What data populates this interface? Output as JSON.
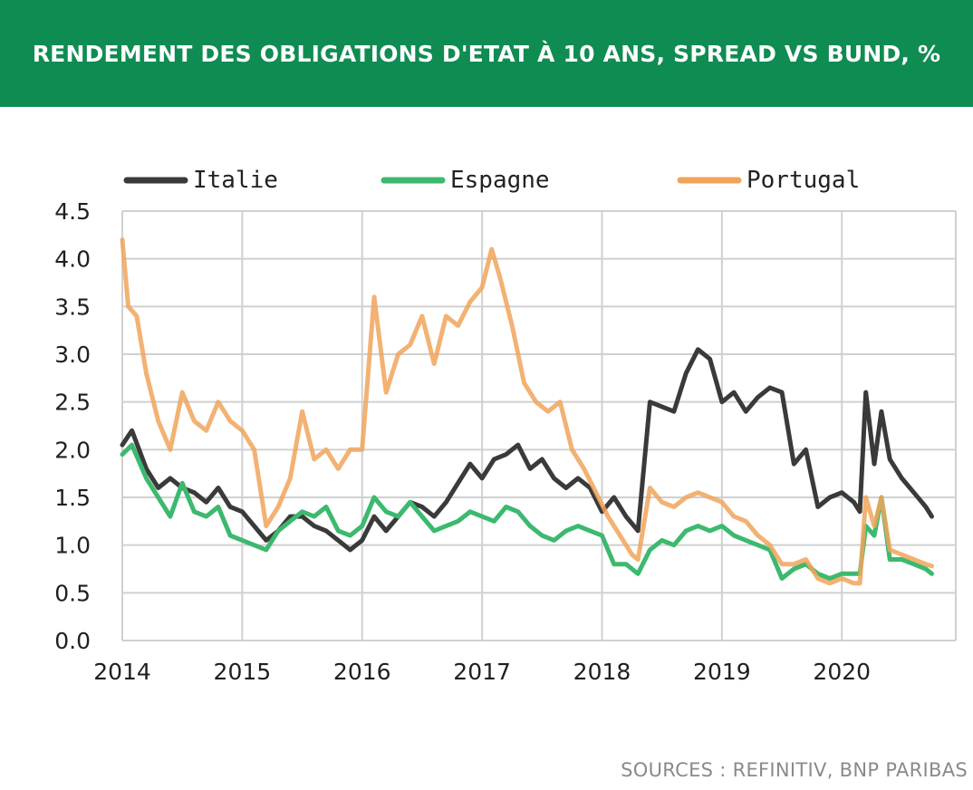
{
  "title": "RENDEMENT DES OBLIGATIONS D'ETAT À 10 ANS, SPREAD VS BUND, %",
  "source": "SOURCES : REFINITIV, BNP PARIBAS",
  "colors": {
    "banner": "#0f8c52",
    "italie": "#3a3a3a",
    "espagne": "#3cb96e",
    "portugal": "#f0a45a",
    "grid": "#d0d0d0"
  },
  "chart_data": {
    "type": "line",
    "title": "RENDEMENT DES OBLIGATIONS D'ETAT À 10 ANS, SPREAD VS BUND, %",
    "xlabel": "",
    "ylabel": "",
    "xlim": [
      2014,
      2020.95
    ],
    "ylim": [
      0,
      4.5
    ],
    "y_ticks": [
      "0.0",
      "0.5",
      "1.0",
      "1.5",
      "2.0",
      "2.5",
      "3.0",
      "3.5",
      "4.0",
      "4.5"
    ],
    "x_ticks": [
      "2014",
      "2015",
      "2016",
      "2017",
      "2018",
      "2019",
      "2020"
    ],
    "grid": true,
    "legend_position": "top",
    "series": [
      {
        "name": "Italie",
        "points": [
          [
            2014.0,
            2.05
          ],
          [
            2014.08,
            2.2
          ],
          [
            2014.2,
            1.8
          ],
          [
            2014.3,
            1.6
          ],
          [
            2014.4,
            1.7
          ],
          [
            2014.5,
            1.6
          ],
          [
            2014.6,
            1.55
          ],
          [
            2014.7,
            1.45
          ],
          [
            2014.8,
            1.6
          ],
          [
            2014.9,
            1.4
          ],
          [
            2015.0,
            1.35
          ],
          [
            2015.1,
            1.2
          ],
          [
            2015.2,
            1.05
          ],
          [
            2015.3,
            1.15
          ],
          [
            2015.4,
            1.3
          ],
          [
            2015.5,
            1.3
          ],
          [
            2015.6,
            1.2
          ],
          [
            2015.7,
            1.15
          ],
          [
            2015.8,
            1.05
          ],
          [
            2015.9,
            0.95
          ],
          [
            2016.0,
            1.05
          ],
          [
            2016.1,
            1.3
          ],
          [
            2016.2,
            1.15
          ],
          [
            2016.3,
            1.3
          ],
          [
            2016.4,
            1.45
          ],
          [
            2016.5,
            1.4
          ],
          [
            2016.6,
            1.3
          ],
          [
            2016.7,
            1.45
          ],
          [
            2016.8,
            1.65
          ],
          [
            2016.9,
            1.85
          ],
          [
            2017.0,
            1.7
          ],
          [
            2017.1,
            1.9
          ],
          [
            2017.2,
            1.95
          ],
          [
            2017.3,
            2.05
          ],
          [
            2017.4,
            1.8
          ],
          [
            2017.5,
            1.9
          ],
          [
            2017.6,
            1.7
          ],
          [
            2017.7,
            1.6
          ],
          [
            2017.8,
            1.7
          ],
          [
            2017.9,
            1.6
          ],
          [
            2018.0,
            1.35
          ],
          [
            2018.1,
            1.5
          ],
          [
            2018.2,
            1.3
          ],
          [
            2018.3,
            1.15
          ],
          [
            2018.4,
            2.5
          ],
          [
            2018.5,
            2.45
          ],
          [
            2018.6,
            2.4
          ],
          [
            2018.7,
            2.8
          ],
          [
            2018.8,
            3.05
          ],
          [
            2018.9,
            2.95
          ],
          [
            2019.0,
            2.5
          ],
          [
            2019.1,
            2.6
          ],
          [
            2019.2,
            2.4
          ],
          [
            2019.3,
            2.55
          ],
          [
            2019.4,
            2.65
          ],
          [
            2019.5,
            2.6
          ],
          [
            2019.6,
            1.85
          ],
          [
            2019.7,
            2.0
          ],
          [
            2019.8,
            1.4
          ],
          [
            2019.9,
            1.5
          ],
          [
            2020.0,
            1.55
          ],
          [
            2020.1,
            1.45
          ],
          [
            2020.15,
            1.35
          ],
          [
            2020.2,
            2.6
          ],
          [
            2020.27,
            1.85
          ],
          [
            2020.33,
            2.4
          ],
          [
            2020.4,
            1.9
          ],
          [
            2020.5,
            1.7
          ],
          [
            2020.6,
            1.55
          ],
          [
            2020.7,
            1.4
          ],
          [
            2020.75,
            1.3
          ]
        ]
      },
      {
        "name": "Espagne",
        "points": [
          [
            2014.0,
            1.95
          ],
          [
            2014.08,
            2.05
          ],
          [
            2014.2,
            1.7
          ],
          [
            2014.3,
            1.5
          ],
          [
            2014.4,
            1.3
          ],
          [
            2014.5,
            1.65
          ],
          [
            2014.6,
            1.35
          ],
          [
            2014.7,
            1.3
          ],
          [
            2014.8,
            1.4
          ],
          [
            2014.9,
            1.1
          ],
          [
            2015.0,
            1.05
          ],
          [
            2015.1,
            1.0
          ],
          [
            2015.2,
            0.95
          ],
          [
            2015.3,
            1.15
          ],
          [
            2015.4,
            1.25
          ],
          [
            2015.5,
            1.35
          ],
          [
            2015.6,
            1.3
          ],
          [
            2015.7,
            1.4
          ],
          [
            2015.8,
            1.15
          ],
          [
            2015.9,
            1.1
          ],
          [
            2016.0,
            1.2
          ],
          [
            2016.1,
            1.5
          ],
          [
            2016.2,
            1.35
          ],
          [
            2016.3,
            1.3
          ],
          [
            2016.4,
            1.45
          ],
          [
            2016.5,
            1.3
          ],
          [
            2016.6,
            1.15
          ],
          [
            2016.7,
            1.2
          ],
          [
            2016.8,
            1.25
          ],
          [
            2016.9,
            1.35
          ],
          [
            2017.0,
            1.3
          ],
          [
            2017.1,
            1.25
          ],
          [
            2017.2,
            1.4
          ],
          [
            2017.3,
            1.35
          ],
          [
            2017.4,
            1.2
          ],
          [
            2017.5,
            1.1
          ],
          [
            2017.6,
            1.05
          ],
          [
            2017.7,
            1.15
          ],
          [
            2017.8,
            1.2
          ],
          [
            2017.9,
            1.15
          ],
          [
            2018.0,
            1.1
          ],
          [
            2018.1,
            0.8
          ],
          [
            2018.2,
            0.8
          ],
          [
            2018.3,
            0.7
          ],
          [
            2018.4,
            0.95
          ],
          [
            2018.5,
            1.05
          ],
          [
            2018.6,
            1.0
          ],
          [
            2018.7,
            1.15
          ],
          [
            2018.8,
            1.2
          ],
          [
            2018.9,
            1.15
          ],
          [
            2019.0,
            1.2
          ],
          [
            2019.1,
            1.1
          ],
          [
            2019.2,
            1.05
          ],
          [
            2019.3,
            1.0
          ],
          [
            2019.4,
            0.95
          ],
          [
            2019.5,
            0.65
          ],
          [
            2019.6,
            0.75
          ],
          [
            2019.7,
            0.8
          ],
          [
            2019.8,
            0.7
          ],
          [
            2019.9,
            0.65
          ],
          [
            2020.0,
            0.7
          ],
          [
            2020.1,
            0.7
          ],
          [
            2020.15,
            0.7
          ],
          [
            2020.2,
            1.2
          ],
          [
            2020.27,
            1.1
          ],
          [
            2020.33,
            1.5
          ],
          [
            2020.4,
            0.85
          ],
          [
            2020.5,
            0.85
          ],
          [
            2020.6,
            0.8
          ],
          [
            2020.7,
            0.75
          ],
          [
            2020.75,
            0.7
          ]
        ]
      },
      {
        "name": "Portugal",
        "points": [
          [
            2014.0,
            4.2
          ],
          [
            2014.05,
            3.5
          ],
          [
            2014.12,
            3.4
          ],
          [
            2014.2,
            2.8
          ],
          [
            2014.3,
            2.3
          ],
          [
            2014.4,
            2.0
          ],
          [
            2014.5,
            2.6
          ],
          [
            2014.6,
            2.3
          ],
          [
            2014.7,
            2.2
          ],
          [
            2014.8,
            2.5
          ],
          [
            2014.9,
            2.3
          ],
          [
            2015.0,
            2.2
          ],
          [
            2015.1,
            2.0
          ],
          [
            2015.2,
            1.2
          ],
          [
            2015.3,
            1.4
          ],
          [
            2015.4,
            1.7
          ],
          [
            2015.5,
            2.4
          ],
          [
            2015.6,
            1.9
          ],
          [
            2015.7,
            2.0
          ],
          [
            2015.8,
            1.8
          ],
          [
            2015.9,
            2.0
          ],
          [
            2016.0,
            2.0
          ],
          [
            2016.1,
            3.6
          ],
          [
            2016.2,
            2.6
          ],
          [
            2016.3,
            3.0
          ],
          [
            2016.4,
            3.1
          ],
          [
            2016.5,
            3.4
          ],
          [
            2016.6,
            2.9
          ],
          [
            2016.7,
            3.4
          ],
          [
            2016.8,
            3.3
          ],
          [
            2016.9,
            3.55
          ],
          [
            2017.0,
            3.7
          ],
          [
            2017.08,
            4.1
          ],
          [
            2017.15,
            3.8
          ],
          [
            2017.25,
            3.3
          ],
          [
            2017.35,
            2.7
          ],
          [
            2017.45,
            2.5
          ],
          [
            2017.55,
            2.4
          ],
          [
            2017.65,
            2.5
          ],
          [
            2017.75,
            2.0
          ],
          [
            2017.85,
            1.8
          ],
          [
            2017.95,
            1.55
          ],
          [
            2018.05,
            1.3
          ],
          [
            2018.15,
            1.1
          ],
          [
            2018.25,
            0.9
          ],
          [
            2018.3,
            0.85
          ],
          [
            2018.4,
            1.6
          ],
          [
            2018.5,
            1.45
          ],
          [
            2018.6,
            1.4
          ],
          [
            2018.7,
            1.5
          ],
          [
            2018.8,
            1.55
          ],
          [
            2018.9,
            1.5
          ],
          [
            2019.0,
            1.45
          ],
          [
            2019.1,
            1.3
          ],
          [
            2019.2,
            1.25
          ],
          [
            2019.3,
            1.1
          ],
          [
            2019.4,
            1.0
          ],
          [
            2019.5,
            0.8
          ],
          [
            2019.6,
            0.8
          ],
          [
            2019.7,
            0.85
          ],
          [
            2019.8,
            0.65
          ],
          [
            2019.9,
            0.6
          ],
          [
            2020.0,
            0.65
          ],
          [
            2020.1,
            0.6
          ],
          [
            2020.15,
            0.6
          ],
          [
            2020.2,
            1.5
          ],
          [
            2020.27,
            1.2
          ],
          [
            2020.33,
            1.5
          ],
          [
            2020.4,
            0.95
          ],
          [
            2020.5,
            0.9
          ],
          [
            2020.6,
            0.85
          ],
          [
            2020.7,
            0.8
          ],
          [
            2020.75,
            0.78
          ]
        ]
      }
    ]
  }
}
